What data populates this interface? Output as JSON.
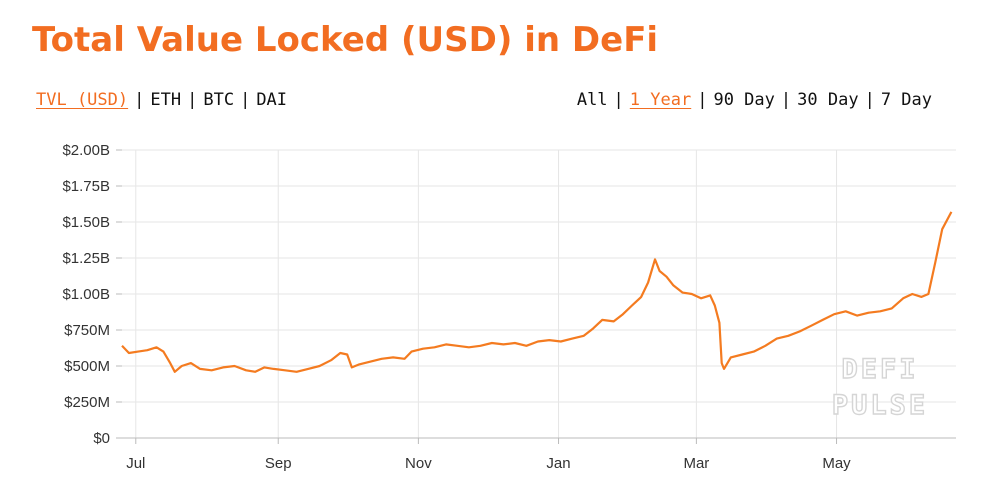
{
  "header": {
    "title": "Total Value Locked (USD) in DeFi"
  },
  "metric_tabs": [
    {
      "label": "TVL (USD)",
      "active": true
    },
    {
      "label": "ETH",
      "active": false
    },
    {
      "label": "BTC",
      "active": false
    },
    {
      "label": "DAI",
      "active": false
    }
  ],
  "range_tabs": [
    {
      "label": "All",
      "active": false
    },
    {
      "label": "1 Year",
      "active": true
    },
    {
      "label": "90 Day",
      "active": false
    },
    {
      "label": "30 Day",
      "active": false
    },
    {
      "label": "7 Day",
      "active": false
    }
  ],
  "separator": "|",
  "watermark": {
    "line1": "DEFI",
    "line2": "PULSE"
  },
  "colors": {
    "accent": "#f26d21",
    "line": "#f47b20",
    "grid": "#e6e6e6"
  },
  "chart_data": {
    "type": "line",
    "title": "Total Value Locked (USD) in DeFi",
    "xlabel": "",
    "ylabel": "",
    "y_ticks": [
      {
        "value": 0,
        "label": "$0"
      },
      {
        "value": 0.25,
        "label": "$250M"
      },
      {
        "value": 0.5,
        "label": "$500M"
      },
      {
        "value": 0.75,
        "label": "$750M"
      },
      {
        "value": 1.0,
        "label": "$1.00B"
      },
      {
        "value": 1.25,
        "label": "$1.25B"
      },
      {
        "value": 1.5,
        "label": "$1.50B"
      },
      {
        "value": 1.75,
        "label": "$1.75B"
      },
      {
        "value": 2.0,
        "label": "$2.00B"
      }
    ],
    "ylim": [
      0,
      2.0
    ],
    "xlim": [
      "2019-06-25",
      "2020-06-22"
    ],
    "x_ticks": [
      {
        "date": "2019-07-01",
        "label": "Jul"
      },
      {
        "date": "2019-09-01",
        "label": "Sep"
      },
      {
        "date": "2019-11-01",
        "label": "Nov"
      },
      {
        "date": "2020-01-01",
        "label": "Jan"
      },
      {
        "date": "2020-03-01",
        "label": "Mar"
      },
      {
        "date": "2020-05-01",
        "label": "May"
      }
    ],
    "grid": true,
    "series": [
      {
        "points": [
          [
            "2019-06-25",
            0.64
          ],
          [
            "2019-06-28",
            0.59
          ],
          [
            "2019-07-02",
            0.6
          ],
          [
            "2019-07-06",
            0.61
          ],
          [
            "2019-07-10",
            0.63
          ],
          [
            "2019-07-13",
            0.6
          ],
          [
            "2019-07-16",
            0.52
          ],
          [
            "2019-07-18",
            0.46
          ],
          [
            "2019-07-21",
            0.5
          ],
          [
            "2019-07-25",
            0.52
          ],
          [
            "2019-07-29",
            0.48
          ],
          [
            "2019-08-03",
            0.47
          ],
          [
            "2019-08-08",
            0.49
          ],
          [
            "2019-08-13",
            0.5
          ],
          [
            "2019-08-18",
            0.47
          ],
          [
            "2019-08-22",
            0.46
          ],
          [
            "2019-08-26",
            0.49
          ],
          [
            "2019-08-30",
            0.48
          ],
          [
            "2019-09-04",
            0.47
          ],
          [
            "2019-09-09",
            0.46
          ],
          [
            "2019-09-14",
            0.48
          ],
          [
            "2019-09-19",
            0.5
          ],
          [
            "2019-09-24",
            0.54
          ],
          [
            "2019-09-28",
            0.59
          ],
          [
            "2019-10-01",
            0.58
          ],
          [
            "2019-10-03",
            0.49
          ],
          [
            "2019-10-06",
            0.51
          ],
          [
            "2019-10-11",
            0.53
          ],
          [
            "2019-10-16",
            0.55
          ],
          [
            "2019-10-21",
            0.56
          ],
          [
            "2019-10-26",
            0.55
          ],
          [
            "2019-10-29",
            0.6
          ],
          [
            "2019-11-03",
            0.62
          ],
          [
            "2019-11-08",
            0.63
          ],
          [
            "2019-11-13",
            0.65
          ],
          [
            "2019-11-18",
            0.64
          ],
          [
            "2019-11-23",
            0.63
          ],
          [
            "2019-11-28",
            0.64
          ],
          [
            "2019-12-03",
            0.66
          ],
          [
            "2019-12-08",
            0.65
          ],
          [
            "2019-12-13",
            0.66
          ],
          [
            "2019-12-18",
            0.64
          ],
          [
            "2019-12-23",
            0.67
          ],
          [
            "2019-12-28",
            0.68
          ],
          [
            "2020-01-02",
            0.67
          ],
          [
            "2020-01-07",
            0.69
          ],
          [
            "2020-01-12",
            0.71
          ],
          [
            "2020-01-16",
            0.76
          ],
          [
            "2020-01-20",
            0.82
          ],
          [
            "2020-01-25",
            0.81
          ],
          [
            "2020-01-29",
            0.86
          ],
          [
            "2020-02-02",
            0.92
          ],
          [
            "2020-02-06",
            0.98
          ],
          [
            "2020-02-09",
            1.08
          ],
          [
            "2020-02-12",
            1.24
          ],
          [
            "2020-02-14",
            1.16
          ],
          [
            "2020-02-17",
            1.12
          ],
          [
            "2020-02-20",
            1.06
          ],
          [
            "2020-02-24",
            1.01
          ],
          [
            "2020-02-28",
            1.0
          ],
          [
            "2020-03-03",
            0.97
          ],
          [
            "2020-03-07",
            0.99
          ],
          [
            "2020-03-09",
            0.92
          ],
          [
            "2020-03-11",
            0.8
          ],
          [
            "2020-03-12",
            0.52
          ],
          [
            "2020-03-13",
            0.48
          ],
          [
            "2020-03-16",
            0.56
          ],
          [
            "2020-03-21",
            0.58
          ],
          [
            "2020-03-26",
            0.6
          ],
          [
            "2020-03-31",
            0.64
          ],
          [
            "2020-04-05",
            0.69
          ],
          [
            "2020-04-10",
            0.71
          ],
          [
            "2020-04-15",
            0.74
          ],
          [
            "2020-04-20",
            0.78
          ],
          [
            "2020-04-25",
            0.82
          ],
          [
            "2020-04-30",
            0.86
          ],
          [
            "2020-05-05",
            0.88
          ],
          [
            "2020-05-10",
            0.85
          ],
          [
            "2020-05-15",
            0.87
          ],
          [
            "2020-05-20",
            0.88
          ],
          [
            "2020-05-25",
            0.9
          ],
          [
            "2020-05-30",
            0.97
          ],
          [
            "2020-06-03",
            1.0
          ],
          [
            "2020-06-07",
            0.98
          ],
          [
            "2020-06-10",
            1.0
          ],
          [
            "2020-06-13",
            1.22
          ],
          [
            "2020-06-16",
            1.45
          ],
          [
            "2020-06-20",
            1.57
          ]
        ]
      }
    ]
  }
}
